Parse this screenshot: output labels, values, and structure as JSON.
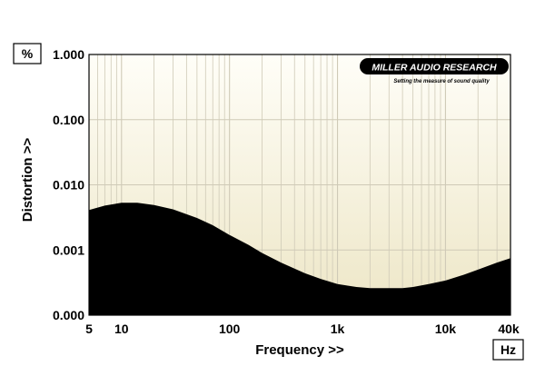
{
  "chart_data": {
    "type": "area",
    "xlabel": "Frequency >>",
    "ylabel": "Distortion >>",
    "x_unit": "Hz",
    "y_unit": "%",
    "x_scale": "log",
    "y_scale": "log",
    "xlim": [
      5,
      40000
    ],
    "ylim_labels": [
      "0.000",
      "0.001",
      "0.010",
      "0.100",
      "1.000"
    ],
    "x_ticks": [
      {
        "value": 5,
        "label": "5"
      },
      {
        "value": 10,
        "label": "10"
      },
      {
        "value": 100,
        "label": "100"
      },
      {
        "value": 1000,
        "label": "1k"
      },
      {
        "value": 10000,
        "label": "10k"
      },
      {
        "value": 40000,
        "label": "40k"
      }
    ],
    "y_ticks": [
      {
        "value": 0.0001,
        "label": "0.000"
      },
      {
        "value": 0.001,
        "label": "0.001"
      },
      {
        "value": 0.01,
        "label": "0.010"
      },
      {
        "value": 0.1,
        "label": "0.100"
      },
      {
        "value": 1,
        "label": "1.000"
      }
    ],
    "grid": true,
    "series": [
      {
        "color": "#000000",
        "x": [
          5,
          7,
          10,
          14,
          20,
          30,
          50,
          70,
          100,
          150,
          200,
          300,
          500,
          700,
          1000,
          1500,
          2000,
          3000,
          4000,
          5000,
          7000,
          10000,
          15000,
          20000,
          30000,
          40000
        ],
        "y": [
          0.0041,
          0.0048,
          0.0053,
          0.0053,
          0.0049,
          0.0042,
          0.0031,
          0.0024,
          0.0017,
          0.0012,
          0.0009,
          0.00064,
          0.00044,
          0.00036,
          0.0003,
          0.00027,
          0.00026,
          0.00026,
          0.00026,
          0.00027,
          0.0003,
          0.00034,
          0.00042,
          0.0005,
          0.00064,
          0.00075
        ]
      }
    ]
  },
  "logo": {
    "name": "MILLER AUDIO RESEARCH",
    "tagline": "Setting the measure of sound quality"
  },
  "colors": {
    "plot_bg_top": "#fffef8",
    "plot_bg_bottom": "#ede6c6",
    "grid": "#cfcab7",
    "fill": "#000000"
  }
}
